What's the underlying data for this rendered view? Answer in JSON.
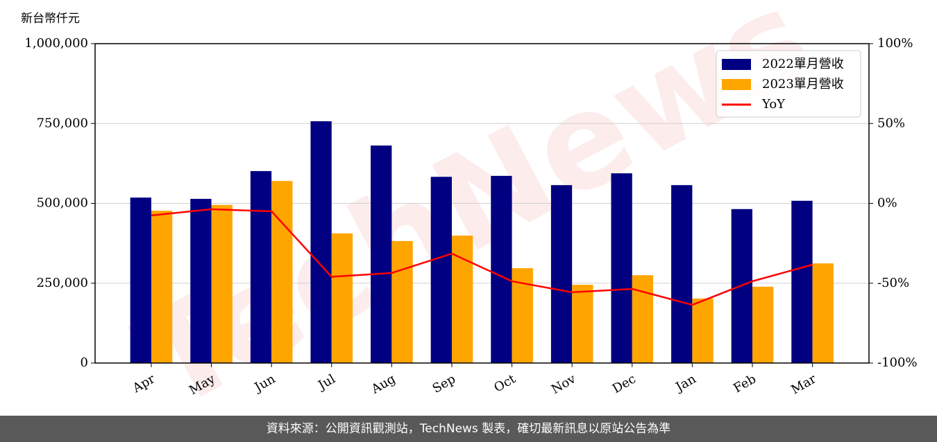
{
  "chart_data": {
    "type": "bar",
    "y_label": "新台幣仟元",
    "watermark": "TechNews",
    "categories": [
      "Apr",
      "May",
      "Jun",
      "Jul",
      "Aug",
      "Sep",
      "Oct",
      "Nov",
      "Dec",
      "Jan",
      "Feb",
      "Mar"
    ],
    "series": [
      {
        "name": "2022單月營收",
        "type": "bar",
        "color": "#000080",
        "values": [
          518000,
          514000,
          601000,
          757000,
          681000,
          583000,
          586000,
          557000,
          594000,
          557000,
          482000,
          508000
        ]
      },
      {
        "name": "2023單月營收",
        "type": "bar",
        "color": "#FFA500",
        "values": [
          477000,
          495000,
          570000,
          406000,
          382000,
          399000,
          297000,
          245000,
          275000,
          202000,
          239000,
          312000
        ]
      },
      {
        "name": "YoY",
        "type": "line",
        "axis": "y2",
        "color": "#FF0000",
        "values": [
          -7.6,
          -3.7,
          -5.0,
          -46.0,
          -43.6,
          -31.5,
          -48.8,
          -55.7,
          -53.6,
          -63.6,
          -48.8,
          -38.4
        ]
      }
    ],
    "ylim": [
      0,
      1000000
    ],
    "yticks": [
      0,
      {
        "value": 250000,
        "label": "250,000"
      },
      {
        "value": 500000,
        "label": "500,000"
      },
      {
        "value": 750000,
        "label": "750,000"
      },
      {
        "value": 1000000,
        "label": "1,000,000"
      }
    ],
    "y2lim": [
      -100,
      100
    ],
    "y2ticks": [
      {
        "value": -100,
        "label": "-100%"
      },
      {
        "value": -50,
        "label": "-50%"
      },
      {
        "value": 0,
        "label": "0%"
      },
      {
        "value": 50,
        "label": "50%"
      },
      {
        "value": 100,
        "label": "100%"
      }
    ],
    "grid": true,
    "legend": "upper right"
  },
  "footer": "資料來源：公開資訊觀測站，TechNews 製表，確切最新訊息以原站公告為準"
}
